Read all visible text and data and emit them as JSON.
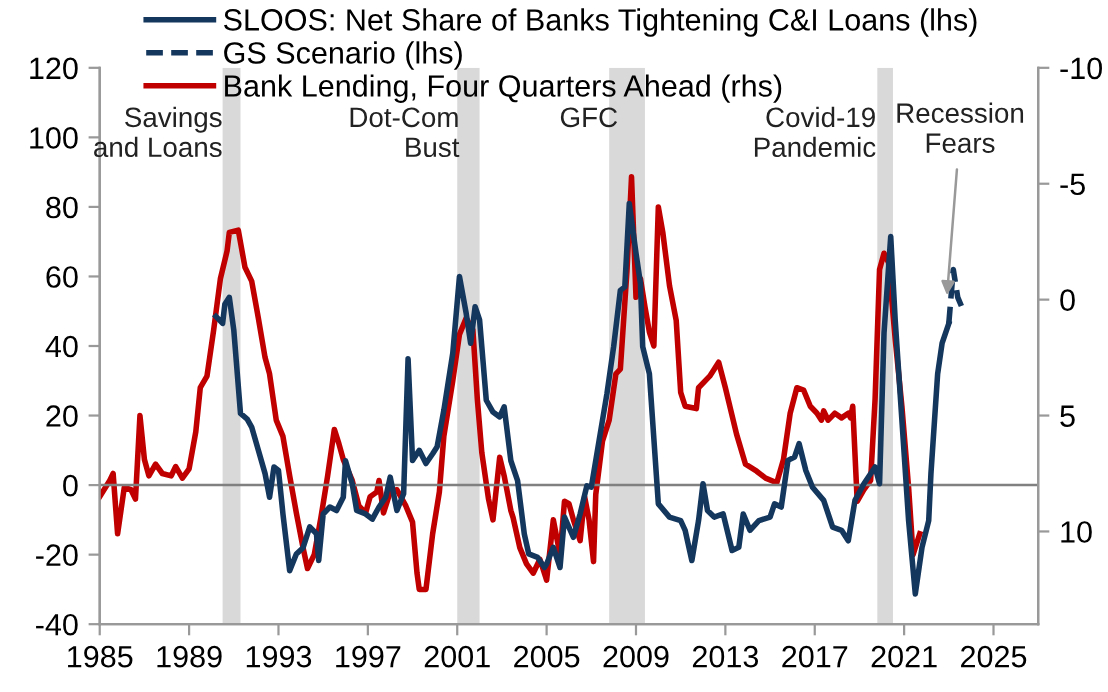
{
  "chart_data": {
    "type": "line",
    "xlim": [
      1985,
      2027
    ],
    "xticks": [
      1985,
      1989,
      1993,
      1997,
      2001,
      2005,
      2009,
      2013,
      2017,
      2021,
      2025
    ],
    "ylim": [
      -40,
      120
    ],
    "yticks": [
      -40,
      -20,
      0,
      20,
      40,
      60,
      80,
      100,
      120
    ],
    "y2lim": [
      14,
      -10
    ],
    "y2ticks": [
      -10,
      -5,
      0,
      5,
      10
    ],
    "legend": "top",
    "grid": false,
    "series": [
      {
        "name": "SLOOS: Net Share of Banks Tightening C&I Loans (lhs)",
        "color": "#14375e",
        "line_style": "solid",
        "x": [
          1990.2,
          1990.5,
          1990.6,
          1990.8,
          1991.0,
          1991.3,
          1991.6,
          1991.8,
          1992.1,
          1992.4,
          1992.6,
          1992.8,
          1993.0,
          1993.2,
          1993.5,
          1993.8,
          1994.1,
          1994.4,
          1994.7,
          1994.8,
          1995.0,
          1995.3,
          1995.6,
          1995.9,
          1996.0,
          1996.3,
          1996.5,
          1996.9,
          1997.2,
          1997.5,
          1997.8,
          1998.0,
          1998.3,
          1998.6,
          1998.8,
          1999.0,
          1999.3,
          1999.6,
          1999.9,
          2000.1,
          2000.4,
          2000.8,
          2001.1,
          2001.4,
          2001.6,
          2001.8,
          2002.0,
          2002.3,
          2002.6,
          2002.9,
          2003.1,
          2003.4,
          2003.7,
          2004.0,
          2004.2,
          2004.6,
          2004.9,
          2005.0,
          2005.3,
          2005.6,
          2005.8,
          2006.2,
          2006.5,
          2006.8,
          2007.0,
          2007.4,
          2007.7,
          2008.0,
          2008.3,
          2008.5,
          2008.7,
          2009.0,
          2009.2,
          2009.3,
          2009.6,
          2010.0,
          2010.5,
          2011.0,
          2011.2,
          2011.5,
          2011.8,
          2012.0,
          2012.2,
          2012.5,
          2012.9,
          2013.3,
          2013.6,
          2013.8,
          2014.1,
          2014.5,
          2015.0,
          2015.2,
          2015.5,
          2015.8,
          2016.1,
          2016.3,
          2016.6,
          2016.9,
          2017.4,
          2017.8,
          2018.2,
          2018.5,
          2018.8,
          2019.2,
          2019.7,
          2019.9,
          2020.1,
          2020.4,
          2020.6,
          2020.9,
          2021.2,
          2021.5,
          2021.8,
          2022.1,
          2022.2,
          2022.5,
          2022.7,
          2023.0
        ],
        "values": [
          48.5,
          46.5,
          52,
          54,
          44.6,
          20.6,
          19,
          16.7,
          10,
          3.3,
          -3.5,
          5.2,
          4.2,
          -8.3,
          -24.6,
          -19.8,
          -18,
          -12,
          -14,
          -21.7,
          -8.3,
          -6.3,
          -7.3,
          -3.5,
          7,
          0.4,
          -7.3,
          -8.3,
          -9.8,
          -6.3,
          -3.5,
          2.3,
          -7.3,
          -2.5,
          36.3,
          7.1,
          10,
          6.2,
          9,
          11,
          21.5,
          37.9,
          60,
          49.4,
          40.8,
          51.3,
          47.5,
          24.4,
          21,
          19.6,
          22.5,
          7,
          1.3,
          -14,
          -19.8,
          -20.8,
          -23.7,
          -22.7,
          -17.9,
          -23.7,
          -9.2,
          -15,
          -8.3,
          -0.2,
          -0.6,
          14.8,
          26.3,
          39.8,
          56,
          57,
          81,
          66.7,
          58,
          39.8,
          32,
          -5.4,
          -9.2,
          -10.2,
          -13,
          -21.7,
          -10.2,
          0.4,
          -7.3,
          -9.2,
          -8.3,
          -18.8,
          -17.9,
          -8.3,
          -13,
          -10.2,
          -9.2,
          -5.4,
          -6.3,
          7.1,
          8.1,
          11.9,
          4.2,
          -0.6,
          -4.4,
          -12.1,
          -13,
          -16,
          -4.4,
          0.4,
          5.2,
          0.4,
          43.7,
          71.5,
          47.5,
          18.7,
          -10.2,
          -31.3,
          -17.9,
          -10.2,
          3.3,
          32,
          40.8,
          46.5
        ]
      },
      {
        "name": "GS Scenario (lhs)",
        "color": "#14375e",
        "line_style": "dashed",
        "x": [
          2023.0,
          2023.2,
          2023.4,
          2023.7
        ],
        "values": [
          46.5,
          62,
          54,
          49.4
        ]
      },
      {
        "name": "Bank Lending, Four Quarters Ahead (rhs)",
        "color": "#c00000",
        "line_style": "solid",
        "axis": "y2",
        "x": [
          1985.0,
          1985.45,
          1985.6,
          1985.8,
          1986.1,
          1986.4,
          1986.6,
          1986.8,
          1987.0,
          1987.2,
          1987.5,
          1987.8,
          1988.2,
          1988.4,
          1988.7,
          1989.0,
          1989.3,
          1989.5,
          1989.8,
          1990.1,
          1990.4,
          1990.7,
          1990.8,
          1991.2,
          1991.5,
          1991.8,
          1992.1,
          1992.4,
          1992.6,
          1992.9,
          1993.2,
          1993.5,
          1993.8,
          1994.1,
          1994.3,
          1994.6,
          1994.9,
          1995.2,
          1995.5,
          1995.7,
          1995.9,
          1996.3,
          1996.6,
          1996.9,
          1997.1,
          1997.4,
          1997.5,
          1997.7,
          1998.0,
          1998.3,
          1998.7,
          1999.0,
          1999.2,
          1999.3,
          1999.6,
          1999.9,
          2000.2,
          2000.4,
          2000.8,
          2001.1,
          2001.4,
          2001.7,
          2001.9,
          2002.1,
          2002.4,
          2002.6,
          2002.9,
          2003.1,
          2003.4,
          2003.5,
          2003.8,
          2004.1,
          2004.4,
          2004.7,
          2005.0,
          2005.3,
          2005.6,
          2005.8,
          2006.0,
          2006.2,
          2006.5,
          2006.7,
          2006.9,
          2007.1,
          2007.2,
          2007.5,
          2007.8,
          2008.1,
          2008.3,
          2008.6,
          2008.8,
          2009.0,
          2009.2,
          2009.4,
          2009.6,
          2009.8,
          2010.0,
          2010.2,
          2010.5,
          2010.8,
          2011.0,
          2011.2,
          2011.7,
          2011.8,
          2012.3,
          2012.7,
          2013.0,
          2013.5,
          2013.9,
          2014.4,
          2014.8,
          2015.3,
          2015.6,
          2015.9,
          2016.2,
          2016.5,
          2016.8,
          2017.1,
          2017.3,
          2017.4,
          2017.6,
          2017.9,
          2018.2,
          2018.5,
          2018.6,
          2018.7,
          2018.9,
          2019.2,
          2019.5,
          2019.7,
          2019.9,
          2020.1,
          2020.3,
          2020.6,
          2020.9,
          2021.2,
          2021.4,
          2021.7
        ],
        "values": [
          8.5,
          7.8,
          7.5,
          10.1,
          8.1,
          8.2,
          8.6,
          5.0,
          6.9,
          7.6,
          7.1,
          7.5,
          7.6,
          7.2,
          7.7,
          7.3,
          5.7,
          3.8,
          3.3,
          1.3,
          -0.9,
          -2.1,
          -2.9,
          -3.0,
          -1.4,
          -0.8,
          0.8,
          2.5,
          3.2,
          5.2,
          5.9,
          7.6,
          9.2,
          10.7,
          11.6,
          11.0,
          9.4,
          7.6,
          5.6,
          6.2,
          6.9,
          7.8,
          8.9,
          9.2,
          8.5,
          8.3,
          7.8,
          9.2,
          8.3,
          8.2,
          8.9,
          9.6,
          11.8,
          12.5,
          12.5,
          10.1,
          8.3,
          5.9,
          3.5,
          1.5,
          0.8,
          1.3,
          4.3,
          6.6,
          8.6,
          9.5,
          6.8,
          7.6,
          9.1,
          9.4,
          10.7,
          11.4,
          11.8,
          11.2,
          12.1,
          9.5,
          11,
          8.7,
          8.8,
          9.5,
          10.4,
          8.5,
          9.5,
          11.3,
          8.4,
          6.1,
          5.2,
          3.2,
          3.0,
          -1.3,
          -5.3,
          -0.1,
          -0.9,
          0.3,
          1.4,
          2.0,
          -4.0,
          -2.9,
          -0.6,
          0.9,
          4.0,
          4.6,
          4.7,
          3.8,
          3.3,
          2.7,
          3.8,
          5.8,
          7.1,
          7.4,
          7.7,
          7.9,
          6.9,
          4.9,
          3.8,
          3.9,
          4.6,
          4.9,
          5.2,
          4.8,
          5.2,
          4.9,
          5.1,
          4.9,
          5.1,
          4.6,
          8.7,
          8.2,
          7.8,
          4.3,
          -1.3,
          -2.0,
          -1.6,
          1.7,
          4.6,
          8.1,
          11.0,
          10.1
        ]
      }
    ],
    "bands": [
      {
        "axis": "x",
        "from": 1990.5,
        "to": 1991.3,
        "label": "Savings\nand Loans",
        "color": "#d9d9d9"
      },
      {
        "axis": "x",
        "from": 2001.0,
        "to": 2002.0,
        "label": "Dot-Com\nBust",
        "color": "#d9d9d9"
      },
      {
        "axis": "x",
        "from": 2007.8,
        "to": 2009.4,
        "label": "GFC",
        "color": "#d9d9d9"
      },
      {
        "axis": "x",
        "from": 2019.8,
        "to": 2020.5,
        "label": "Covid-19\nPandemic",
        "color": "#d9d9d9"
      }
    ],
    "ref_lines": [
      {
        "axis": "y",
        "value": 0,
        "color": "#808080"
      }
    ],
    "annotations": [
      {
        "text": "Recession\nFears",
        "x": 2022.9,
        "y": 53
      }
    ]
  }
}
